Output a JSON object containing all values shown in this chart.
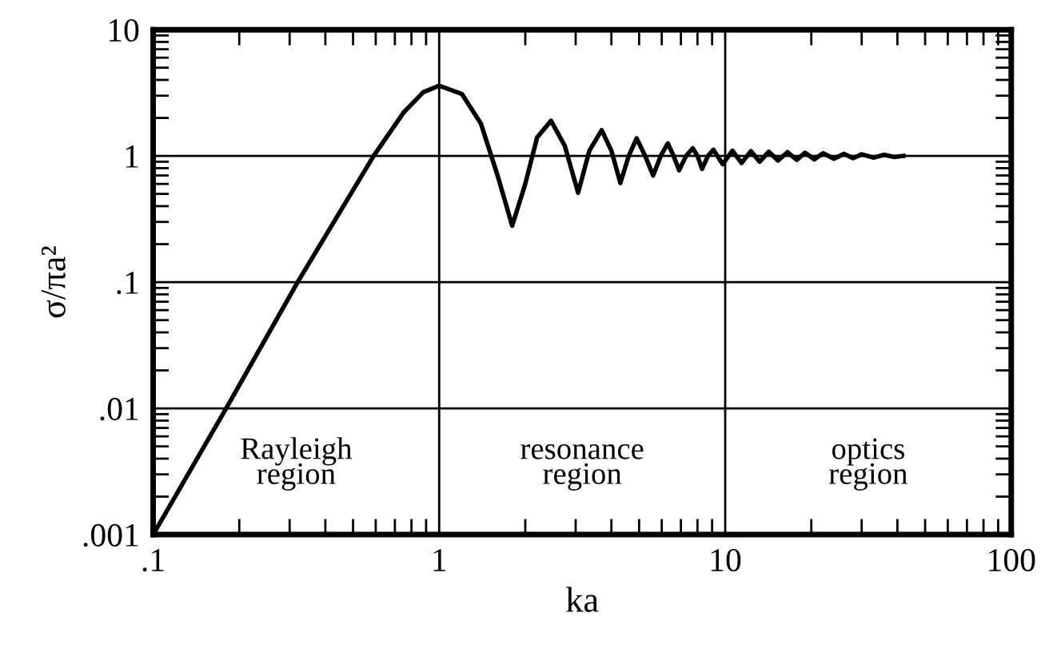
{
  "chart_data": {
    "type": "line",
    "xlabel": "ka",
    "ylabel": "σ/πa²",
    "log": "xy",
    "grid": true,
    "marker": "none",
    "line_style": "solid",
    "xlim": [
      0.1,
      100
    ],
    "ylim": [
      0.001,
      10
    ],
    "xticks": [
      {
        "value": 0.1,
        "label": ".1"
      },
      1,
      10,
      100
    ],
    "yticks": [
      {
        "value": 0.001,
        "label": ".001"
      },
      {
        "value": 0.01,
        "label": ".01"
      },
      {
        "value": 0.1,
        "label": ".1"
      },
      1,
      10
    ],
    "annotations": [
      "Rayleigh\nregion",
      "resonance\nregion",
      "optics\nregion"
    ],
    "series": [
      {
        "color": "#000000",
        "x": [
          0.1,
          0.18,
          0.32,
          0.59,
          0.75,
          0.88,
          1.0,
          1.2,
          1.4,
          1.6,
          1.8,
          2.0,
          2.2,
          2.46,
          2.75,
          3.06,
          3.35,
          3.7,
          4.0,
          4.3,
          4.6,
          4.9,
          5.25,
          5.6,
          5.95,
          6.3,
          6.6,
          6.9,
          7.3,
          7.7,
          8.0,
          8.3,
          8.7,
          9.1,
          9.8,
          10.6,
          11.4,
          12.3,
          13.2,
          14.2,
          15.3,
          16.5,
          17.8,
          19,
          20.5,
          22,
          24,
          26,
          28,
          30,
          33,
          36,
          39,
          42
        ],
        "values": [
          0.001,
          0.01,
          0.1,
          1,
          2.2,
          3.2,
          3.6,
          3.1,
          1.8,
          0.7,
          0.28,
          0.6,
          1.4,
          1.9,
          1.2,
          0.51,
          1.1,
          1.6,
          1.1,
          0.61,
          1.0,
          1.38,
          1.0,
          0.7,
          1.0,
          1.26,
          1.0,
          0.77,
          1.0,
          1.15,
          1.0,
          0.79,
          1.0,
          1.12,
          0.86,
          1.1,
          0.88,
          1.09,
          0.9,
          1.08,
          0.92,
          1.07,
          0.93,
          1.06,
          0.94,
          1.05,
          0.95,
          1.04,
          0.96,
          1.03,
          0.97,
          1.02,
          0.98,
          1.0
        ]
      }
    ]
  }
}
